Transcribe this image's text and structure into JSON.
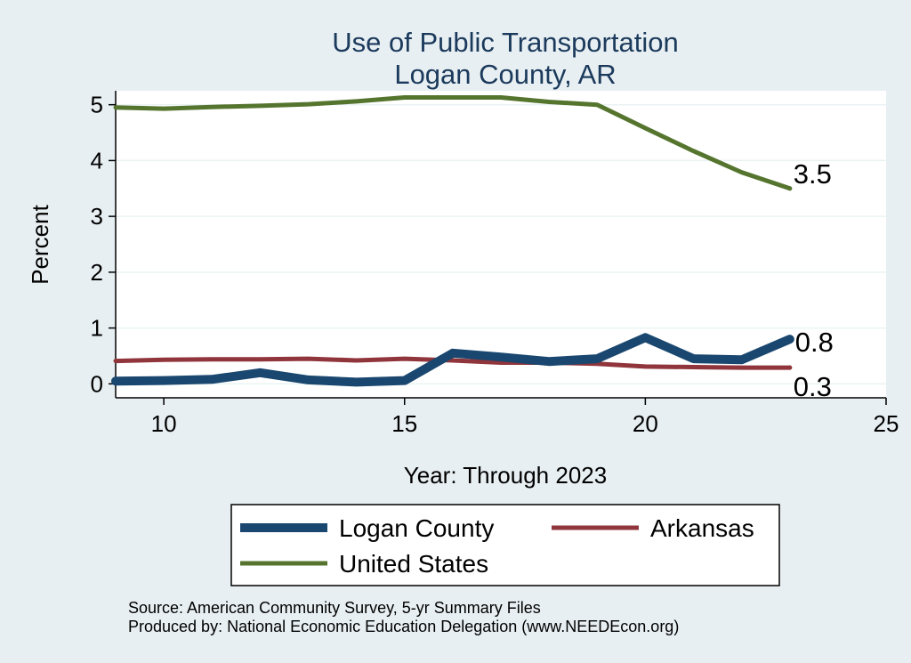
{
  "chart_data": {
    "type": "line",
    "title": "Use of Public Transportation",
    "subtitle": "Logan County, AR",
    "xlabel": "Year: Through 2023",
    "ylabel": "Percent",
    "xlim": [
      9,
      25
    ],
    "ylim": [
      -0.25,
      5.25
    ],
    "x_ticks": [
      10,
      15,
      20,
      25
    ],
    "y_ticks": [
      0,
      1,
      2,
      3,
      4,
      5
    ],
    "grid": true,
    "legend_position": "bottom",
    "x": [
      9,
      10,
      11,
      12,
      13,
      14,
      15,
      16,
      17,
      18,
      19,
      20,
      21,
      22,
      23
    ],
    "series": [
      {
        "name": "Logan County",
        "color": "#1a476f",
        "values": [
          0.05,
          0.06,
          0.08,
          0.2,
          0.07,
          0.03,
          0.06,
          0.55,
          0.48,
          0.4,
          0.45,
          0.83,
          0.45,
          0.43,
          0.8
        ],
        "end_label": "0.8"
      },
      {
        "name": "Arkansas",
        "color": "#90353b",
        "values": [
          0.41,
          0.43,
          0.44,
          0.44,
          0.45,
          0.42,
          0.45,
          0.42,
          0.38,
          0.38,
          0.36,
          0.31,
          0.3,
          0.29,
          0.29
        ],
        "end_label": "0.3"
      },
      {
        "name": "United States",
        "color": "#55752f",
        "values": [
          4.95,
          4.93,
          4.96,
          4.98,
          5.01,
          5.06,
          5.13,
          5.13,
          5.13,
          5.05,
          5.0,
          4.58,
          4.17,
          3.79,
          3.5
        ],
        "end_label": "3.5"
      }
    ],
    "notes": [
      "Source: American Community Survey, 5-yr Summary Files",
      "Produced by: National Economic Education Delegation (www.NEEDEcon.org)"
    ]
  }
}
